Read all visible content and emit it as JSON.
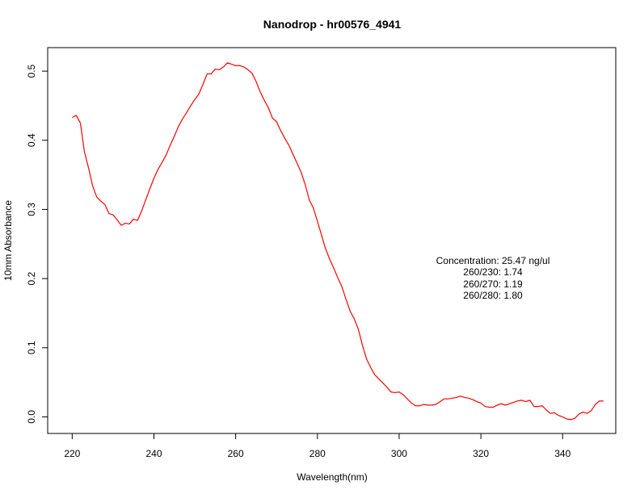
{
  "chart_data": {
    "type": "line",
    "title": "Nanodrop - hr00576_4941",
    "xlabel": "Wavelength(nm)",
    "ylabel": "10mm Absorbance",
    "xlim": [
      214,
      353
    ],
    "ylim": [
      -0.024,
      0.534
    ],
    "xticks": [
      220,
      240,
      260,
      280,
      300,
      320,
      340
    ],
    "yticks": [
      0.0,
      0.1,
      0.2,
      0.3,
      0.4,
      0.5
    ],
    "xtick_labels": [
      "220",
      "240",
      "260",
      "280",
      "300",
      "320",
      "340"
    ],
    "ytick_labels": [
      "0.0",
      "0.1",
      "0.2",
      "0.3",
      "0.4",
      "0.5"
    ],
    "grid": false,
    "series": [
      {
        "color": "#ff0000",
        "x": [
          220,
          221,
          222,
          223,
          224,
          225,
          226,
          227,
          228,
          229,
          230,
          231,
          232,
          233,
          234,
          235,
          236,
          237,
          238,
          239,
          240,
          241,
          242,
          243,
          244,
          245,
          246,
          247,
          248,
          249,
          250,
          251,
          252,
          253,
          254,
          255,
          256,
          257,
          258,
          259,
          260,
          261,
          262,
          263,
          264,
          265,
          266,
          267,
          268,
          269,
          270,
          271,
          272,
          273,
          274,
          275,
          276,
          277,
          278,
          279,
          280,
          281,
          282,
          283,
          284,
          285,
          286,
          287,
          288,
          289,
          290,
          291,
          292,
          293,
          294,
          295,
          296,
          297,
          298,
          299,
          300,
          301,
          302,
          303,
          304,
          305,
          306,
          307,
          308,
          309,
          310,
          311,
          312,
          313,
          314,
          315,
          316,
          317,
          318,
          319,
          320,
          321,
          322,
          323,
          324,
          325,
          326,
          327,
          328,
          329,
          330,
          331,
          332,
          333,
          334,
          335,
          336,
          337,
          338,
          339,
          340,
          341,
          342,
          343,
          344,
          345,
          346,
          347,
          348,
          349,
          350
        ],
        "y": [
          0.433,
          0.436,
          0.425,
          0.383,
          0.36,
          0.334,
          0.318,
          0.312,
          0.307,
          0.294,
          0.292,
          0.285,
          0.277,
          0.28,
          0.279,
          0.286,
          0.284,
          0.298,
          0.314,
          0.33,
          0.345,
          0.358,
          0.368,
          0.379,
          0.393,
          0.406,
          0.42,
          0.431,
          0.44,
          0.45,
          0.459,
          0.467,
          0.481,
          0.496,
          0.496,
          0.503,
          0.502,
          0.506,
          0.512,
          0.51,
          0.508,
          0.508,
          0.506,
          0.502,
          0.497,
          0.485,
          0.47,
          0.458,
          0.447,
          0.432,
          0.427,
          0.414,
          0.403,
          0.393,
          0.38,
          0.367,
          0.354,
          0.336,
          0.314,
          0.302,
          0.283,
          0.263,
          0.243,
          0.228,
          0.215,
          0.201,
          0.188,
          0.17,
          0.153,
          0.142,
          0.127,
          0.104,
          0.084,
          0.072,
          0.061,
          0.055,
          0.049,
          0.043,
          0.036,
          0.035,
          0.036,
          0.032,
          0.026,
          0.02,
          0.016,
          0.016,
          0.018,
          0.017,
          0.017,
          0.018,
          0.022,
          0.026,
          0.026,
          0.027,
          0.028,
          0.03,
          0.028,
          0.027,
          0.025,
          0.022,
          0.02,
          0.015,
          0.014,
          0.014,
          0.017,
          0.019,
          0.017,
          0.019,
          0.021,
          0.023,
          0.024,
          0.022,
          0.024,
          0.015,
          0.015,
          0.016,
          0.01,
          0.005,
          0.006,
          0.002,
          0.0,
          -0.003,
          -0.004,
          -0.002,
          0.004,
          0.007,
          0.005,
          0.009,
          0.018,
          0.023,
          0.023
        ]
      }
    ],
    "annotations": [
      "Concentration: 25.47 ng/ul",
      "260/230: 1.74",
      "260/270: 1.19",
      "260/280: 1.80"
    ]
  }
}
